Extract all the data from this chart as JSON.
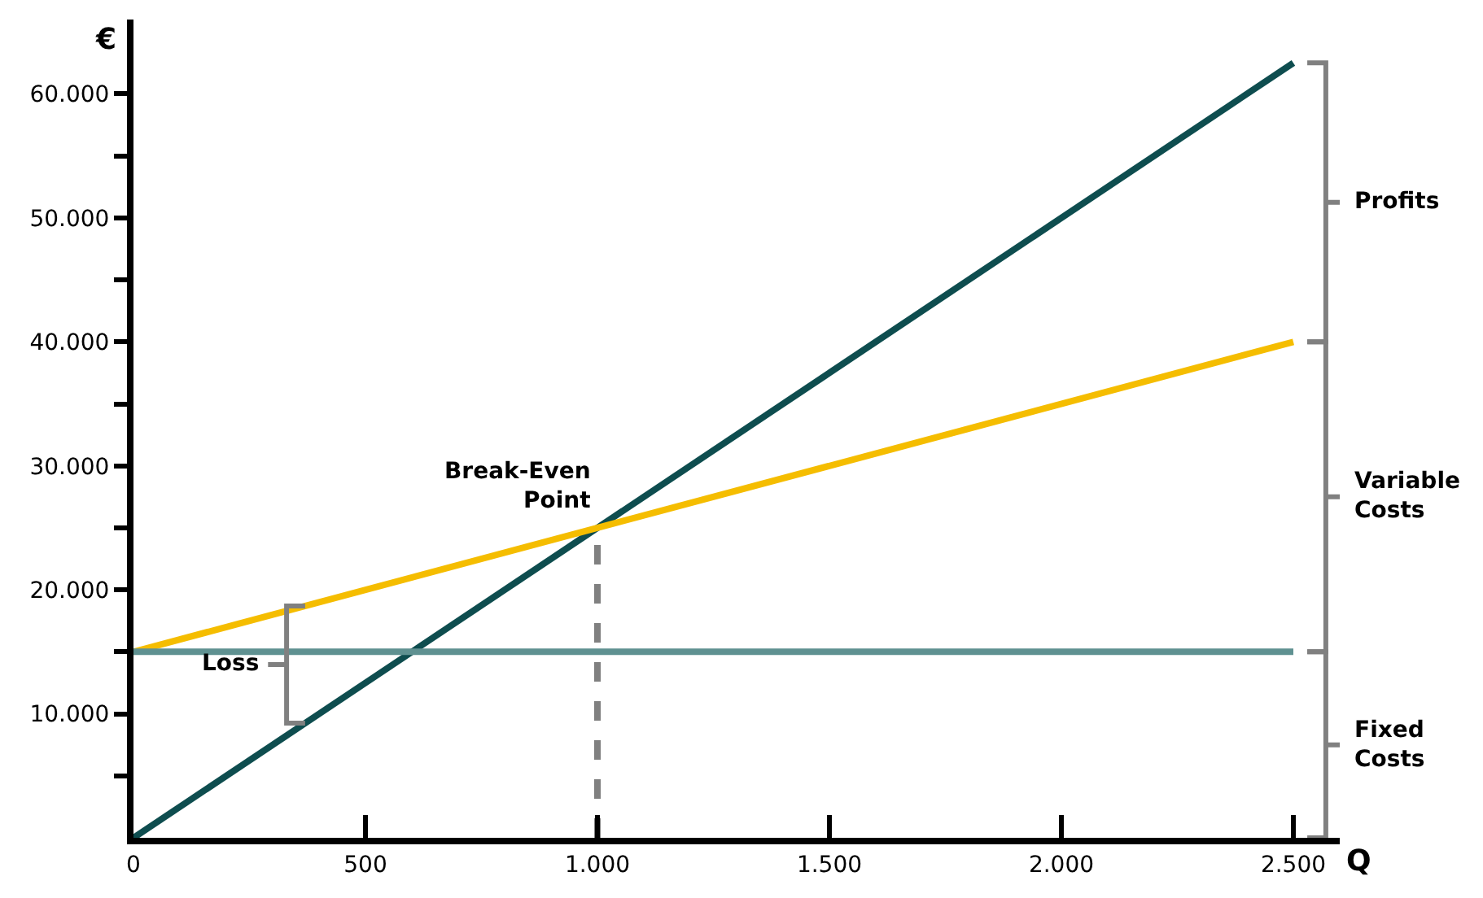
{
  "chart_data": {
    "type": "line",
    "xlabel": "Q",
    "ylabel": "€",
    "xlim": [
      0,
      2600
    ],
    "ylim": [
      0,
      66000
    ],
    "xticks": [
      0,
      500,
      {
        "value": 1000,
        "label": "1.000"
      },
      {
        "value": 1500,
        "label": "1.500"
      },
      {
        "value": 2000,
        "label": "2.000"
      },
      {
        "value": 2500,
        "label": "2.500"
      }
    ],
    "yticks": [
      {
        "value": 5000,
        "label": null
      },
      {
        "value": 10000,
        "label": "10.000"
      },
      {
        "value": 15000,
        "label": null
      },
      {
        "value": 20000,
        "label": "20.000"
      },
      {
        "value": 25000,
        "label": null
      },
      {
        "value": 30000,
        "label": "30.000"
      },
      {
        "value": 35000,
        "label": null
      },
      {
        "value": 40000,
        "label": "40.000"
      },
      {
        "value": 45000,
        "label": null
      },
      {
        "value": 50000,
        "label": "50.000"
      },
      {
        "value": 55000,
        "label": null
      },
      {
        "value": 60000,
        "label": "60.000"
      }
    ],
    "series": [
      {
        "x": [
          0,
          2500
        ],
        "values": [
          0,
          62500
        ],
        "color": "#0e4d4f"
      },
      {
        "x": [
          0,
          2500
        ],
        "values": [
          15000,
          40000
        ],
        "color": "#f5bd00"
      },
      {
        "x": [
          0,
          2500
        ],
        "values": [
          15000,
          15000
        ],
        "color": "#5f9191"
      },
      {
        "x": [
          1000,
          1000
        ],
        "values": [
          0,
          25000
        ],
        "color": "#808080",
        "line_style": "dashed"
      }
    ],
    "annotations": [
      {
        "text": "Break-Even\nPoint",
        "x": 1000,
        "y": 25000
      },
      {
        "text": "Profits",
        "x": 2500,
        "y": 62500
      },
      {
        "text": "Variable\nCosts",
        "x": 2500,
        "y": 40000
      },
      {
        "text": "Fixed\nCosts",
        "x": 2500,
        "y": 15000
      },
      {
        "text": "Loss",
        "x": 370,
        "y": 18700
      }
    ],
    "marker": "none",
    "line_style": "solid"
  }
}
